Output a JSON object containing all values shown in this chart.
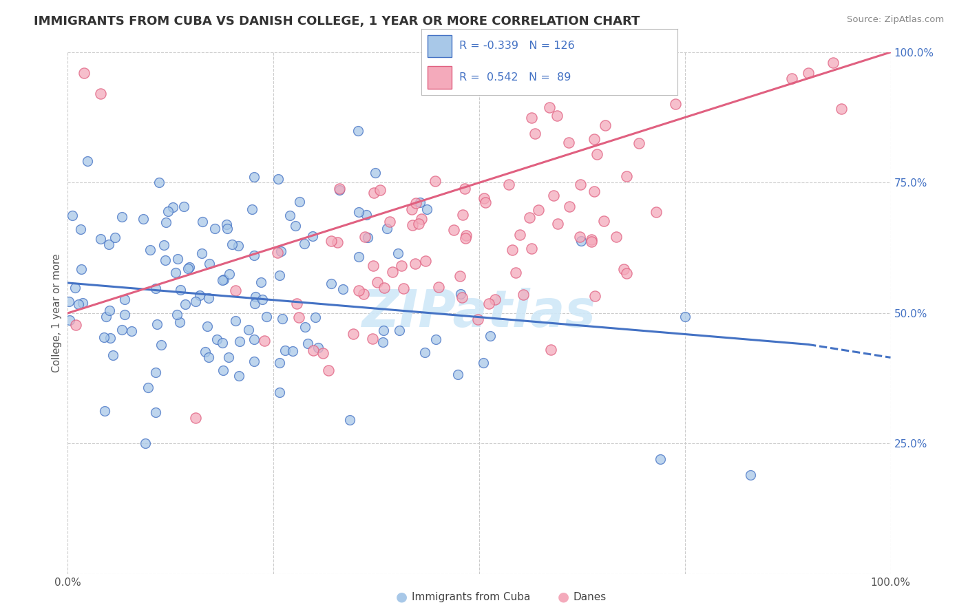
{
  "title": "IMMIGRANTS FROM CUBA VS DANISH COLLEGE, 1 YEAR OR MORE CORRELATION CHART",
  "source_text": "Source: ZipAtlas.com",
  "ylabel": "College, 1 year or more",
  "xlim": [
    0.0,
    1.0
  ],
  "ylim": [
    0.0,
    1.0
  ],
  "cuba_color": "#a8c8e8",
  "danes_color": "#f4aabb",
  "cuba_line_color": "#4472c4",
  "danes_line_color": "#e06080",
  "watermark_color": "#d0e8f8",
  "background_color": "#ffffff",
  "grid_color": "#cccccc",
  "cuba_R": -0.339,
  "cuba_N": 126,
  "danes_R": 0.542,
  "danes_N": 89,
  "legend_text_color": "#4472c4",
  "title_color": "#333333",
  "axis_text_color": "#4472c4",
  "label_color": "#555555"
}
